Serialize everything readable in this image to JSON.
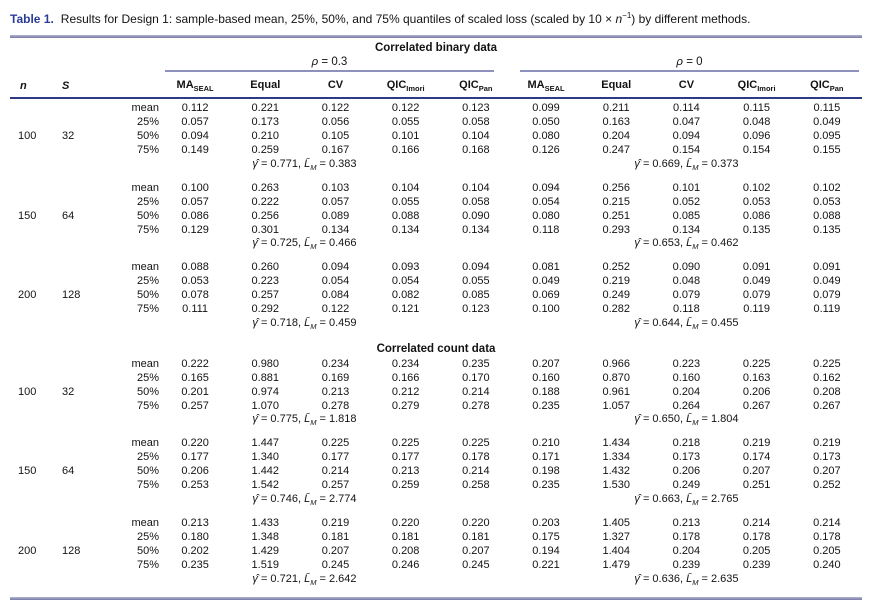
{
  "title": {
    "label": "Table 1.",
    "text_a": "Results for Design 1: sample-based mean, 25%, 50%, and 75% quantiles of scaled loss (scaled by 10 × ",
    "n_var": "n",
    "n_exp": "−1",
    "text_b": ") by different methods."
  },
  "colors": {
    "caption_label_blue": "#2a3b96",
    "rule_purple": "#8e90bd",
    "rule_navy": "#2d3a85"
  },
  "symbols": {
    "gamma_hat": "γ̂",
    "L_bar": "L̄",
    "L_sub": "M",
    "equals": " = ",
    "comma": ", "
  },
  "header": {
    "col_n": "n",
    "col_S": "S",
    "rho_symbol": "ρ",
    "rho1_rest": " = 0.3",
    "rho2_rest": " = 0",
    "methods": [
      {
        "main": "MA",
        "sub": "SEAL"
      },
      {
        "main": "Equal",
        "sub": ""
      },
      {
        "main": "CV",
        "sub": ""
      },
      {
        "main": "QIC",
        "sub": "Imori"
      },
      {
        "main": "QIC",
        "sub": "Pan"
      }
    ]
  },
  "table": {
    "sections": [
      {
        "label": "Correlated binary data",
        "groups": [
          {
            "n": "100",
            "S": "32",
            "rows": [
              {
                "stat": "mean",
                "rho03": [
                  "0.112",
                  "0.221",
                  "0.122",
                  "0.122",
                  "0.123"
                ],
                "rho0": [
                  "0.099",
                  "0.211",
                  "0.114",
                  "0.115",
                  "0.115"
                ]
              },
              {
                "stat": "25%",
                "rho03": [
                  "0.057",
                  "0.173",
                  "0.056",
                  "0.055",
                  "0.058"
                ],
                "rho0": [
                  "0.050",
                  "0.163",
                  "0.047",
                  "0.048",
                  "0.049"
                ]
              },
              {
                "stat": "50%",
                "rho03": [
                  "0.094",
                  "0.210",
                  "0.105",
                  "0.101",
                  "0.104"
                ],
                "rho0": [
                  "0.080",
                  "0.204",
                  "0.094",
                  "0.096",
                  "0.095"
                ]
              },
              {
                "stat": "75%",
                "rho03": [
                  "0.149",
                  "0.259",
                  "0.167",
                  "0.166",
                  "0.168"
                ],
                "rho0": [
                  "0.126",
                  "0.247",
                  "0.154",
                  "0.154",
                  "0.155"
                ]
              }
            ],
            "gamma_rho03": {
              "gamma": "0.771",
              "lm": "0.383"
            },
            "gamma_rho0": {
              "gamma": "0.669",
              "lm": "0.373"
            }
          },
          {
            "n": "150",
            "S": "64",
            "rows": [
              {
                "stat": "mean",
                "rho03": [
                  "0.100",
                  "0.263",
                  "0.103",
                  "0.104",
                  "0.104"
                ],
                "rho0": [
                  "0.094",
                  "0.256",
                  "0.101",
                  "0.102",
                  "0.102"
                ]
              },
              {
                "stat": "25%",
                "rho03": [
                  "0.057",
                  "0.222",
                  "0.057",
                  "0.055",
                  "0.058"
                ],
                "rho0": [
                  "0.054",
                  "0.215",
                  "0.052",
                  "0.053",
                  "0.053"
                ]
              },
              {
                "stat": "50%",
                "rho03": [
                  "0.086",
                  "0.256",
                  "0.089",
                  "0.088",
                  "0.090"
                ],
                "rho0": [
                  "0.080",
                  "0.251",
                  "0.085",
                  "0.086",
                  "0.088"
                ]
              },
              {
                "stat": "75%",
                "rho03": [
                  "0.129",
                  "0.301",
                  "0.134",
                  "0.134",
                  "0.134"
                ],
                "rho0": [
                  "0.118",
                  "0.293",
                  "0.134",
                  "0.135",
                  "0.135"
                ]
              }
            ],
            "gamma_rho03": {
              "gamma": "0.725",
              "lm": "0.466"
            },
            "gamma_rho0": {
              "gamma": "0.653",
              "lm": "0.462"
            }
          },
          {
            "n": "200",
            "S": "128",
            "rows": [
              {
                "stat": "mean",
                "rho03": [
                  "0.088",
                  "0.260",
                  "0.094",
                  "0.093",
                  "0.094"
                ],
                "rho0": [
                  "0.081",
                  "0.252",
                  "0.090",
                  "0.091",
                  "0.091"
                ]
              },
              {
                "stat": "25%",
                "rho03": [
                  "0.053",
                  "0.223",
                  "0.054",
                  "0.054",
                  "0.055"
                ],
                "rho0": [
                  "0.049",
                  "0.219",
                  "0.048",
                  "0.049",
                  "0.049"
                ]
              },
              {
                "stat": "50%",
                "rho03": [
                  "0.078",
                  "0.257",
                  "0.084",
                  "0.082",
                  "0.085"
                ],
                "rho0": [
                  "0.069",
                  "0.249",
                  "0.079",
                  "0.079",
                  "0.079"
                ]
              },
              {
                "stat": "75%",
                "rho03": [
                  "0.111",
                  "0.292",
                  "0.122",
                  "0.121",
                  "0.123"
                ],
                "rho0": [
                  "0.100",
                  "0.282",
                  "0.118",
                  "0.119",
                  "0.119"
                ]
              }
            ],
            "gamma_rho03": {
              "gamma": "0.718",
              "lm": "0.459"
            },
            "gamma_rho0": {
              "gamma": "0.644",
              "lm": "0.455"
            }
          }
        ]
      },
      {
        "label": "Correlated count data",
        "groups": [
          {
            "n": "100",
            "S": "32",
            "rows": [
              {
                "stat": "mean",
                "rho03": [
                  "0.222",
                  "0.980",
                  "0.234",
                  "0.234",
                  "0.235"
                ],
                "rho0": [
                  "0.207",
                  "0.966",
                  "0.223",
                  "0.225",
                  "0.225"
                ]
              },
              {
                "stat": "25%",
                "rho03": [
                  "0.165",
                  "0.881",
                  "0.169",
                  "0.166",
                  "0.170"
                ],
                "rho0": [
                  "0.160",
                  "0.870",
                  "0.160",
                  "0.163",
                  "0.162"
                ]
              },
              {
                "stat": "50%",
                "rho03": [
                  "0.201",
                  "0.974",
                  "0.213",
                  "0.212",
                  "0.214"
                ],
                "rho0": [
                  "0.188",
                  "0.961",
                  "0.204",
                  "0.206",
                  "0.208"
                ]
              },
              {
                "stat": "75%",
                "rho03": [
                  "0.257",
                  "1.070",
                  "0.278",
                  "0.279",
                  "0.278"
                ],
                "rho0": [
                  "0.235",
                  "1.057",
                  "0.264",
                  "0.267",
                  "0.267"
                ]
              }
            ],
            "gamma_rho03": {
              "gamma": "0.775",
              "lm": "1.818"
            },
            "gamma_rho0": {
              "gamma": "0.650",
              "lm": "1.804"
            }
          },
          {
            "n": "150",
            "S": "64",
            "rows": [
              {
                "stat": "mean",
                "rho03": [
                  "0.220",
                  "1.447",
                  "0.225",
                  "0.225",
                  "0.225"
                ],
                "rho0": [
                  "0.210",
                  "1.434",
                  "0.218",
                  "0.219",
                  "0.219"
                ]
              },
              {
                "stat": "25%",
                "rho03": [
                  "0.177",
                  "1.340",
                  "0.177",
                  "0.177",
                  "0.178"
                ],
                "rho0": [
                  "0.171",
                  "1.334",
                  "0.173",
                  "0.174",
                  "0.173"
                ]
              },
              {
                "stat": "50%",
                "rho03": [
                  "0.206",
                  "1.442",
                  "0.214",
                  "0.213",
                  "0.214"
                ],
                "rho0": [
                  "0.198",
                  "1.432",
                  "0.206",
                  "0.207",
                  "0.207"
                ]
              },
              {
                "stat": "75%",
                "rho03": [
                  "0.253",
                  "1.542",
                  "0.257",
                  "0.259",
                  "0.258"
                ],
                "rho0": [
                  "0.235",
                  "1.530",
                  "0.249",
                  "0.251",
                  "0.252"
                ]
              }
            ],
            "gamma_rho03": {
              "gamma": "0.746",
              "lm": "2.774"
            },
            "gamma_rho0": {
              "gamma": "0.663",
              "lm": "2.765"
            }
          },
          {
            "n": "200",
            "S": "128",
            "rows": [
              {
                "stat": "mean",
                "rho03": [
                  "0.213",
                  "1.433",
                  "0.219",
                  "0.220",
                  "0.220"
                ],
                "rho0": [
                  "0.203",
                  "1.405",
                  "0.213",
                  "0.214",
                  "0.214"
                ]
              },
              {
                "stat": "25%",
                "rho03": [
                  "0.180",
                  "1.348",
                  "0.181",
                  "0.181",
                  "0.181"
                ],
                "rho0": [
                  "0.175",
                  "1.327",
                  "0.178",
                  "0.178",
                  "0.178"
                ]
              },
              {
                "stat": "50%",
                "rho03": [
                  "0.202",
                  "1.429",
                  "0.207",
                  "0.208",
                  "0.207"
                ],
                "rho0": [
                  "0.194",
                  "1.404",
                  "0.204",
                  "0.205",
                  "0.205"
                ]
              },
              {
                "stat": "75%",
                "rho03": [
                  "0.235",
                  "1.519",
                  "0.245",
                  "0.246",
                  "0.245"
                ],
                "rho0": [
                  "0.221",
                  "1.479",
                  "0.239",
                  "0.239",
                  "0.240"
                ]
              }
            ],
            "gamma_rho03": {
              "gamma": "0.721",
              "lm": "2.642"
            },
            "gamma_rho0": {
              "gamma": "0.636",
              "lm": "2.635"
            }
          }
        ]
      }
    ]
  }
}
